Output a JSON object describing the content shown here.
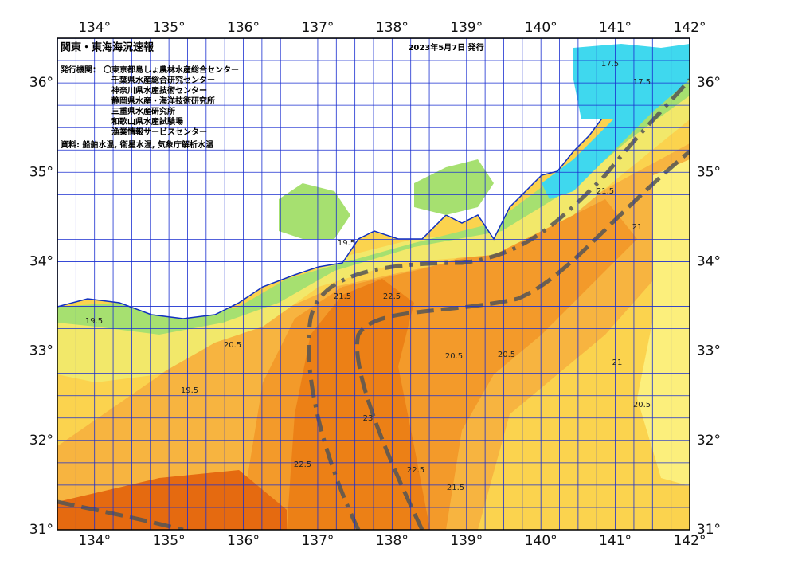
{
  "header": {
    "title": "関東・東海海況速報",
    "date": "2023年5月7日 発行",
    "issuers_label": "発行機関：",
    "issuers": [
      "〇東京都島しょ農林水産総合センター",
      "千葉県水産総合研究センター",
      "神奈川県水産技術センター",
      "静岡県水産・海洋技術研究所",
      "三重県水産研究所",
      "和歌山県水産試験場",
      "漁業情報サービスセンター"
    ],
    "source": "資料: 船舶水温, 衛星水温, 気象庁解析水温"
  },
  "map": {
    "lon_labels": [
      "134°",
      "135°",
      "136°",
      "137°",
      "138°",
      "139°",
      "140°",
      "141°",
      "142°"
    ],
    "lat_labels": [
      "31°",
      "32°",
      "33°",
      "34°",
      "35°",
      "36°"
    ],
    "contour_labels": [
      "17.5",
      "17.5",
      "19.5",
      "19.5",
      "20.5",
      "20.5",
      "21.5",
      "21.5",
      "22.5",
      "22.5",
      "23",
      "21",
      "20.5",
      "21.5",
      "22.5",
      "20.5",
      "19.5",
      "21"
    ]
  }
}
